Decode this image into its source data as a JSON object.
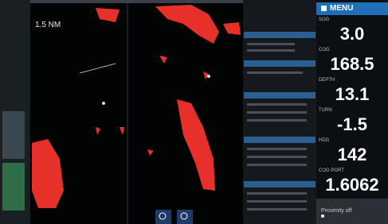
{
  "status": {
    "range": "1.5 NM"
  },
  "menu": "MENU",
  "instruments": [
    {
      "label": "SOG",
      "value": "3.0"
    },
    {
      "label": "COG",
      "value": "168.5"
    },
    {
      "label": "DEPTH",
      "value": "13.1"
    },
    {
      "label": "TURN",
      "value": "-1.5"
    },
    {
      "label": "HDG",
      "value": "142"
    },
    {
      "label": "COG PORT",
      "value": "1.6062"
    }
  ],
  "footer": "Proximity off"
}
